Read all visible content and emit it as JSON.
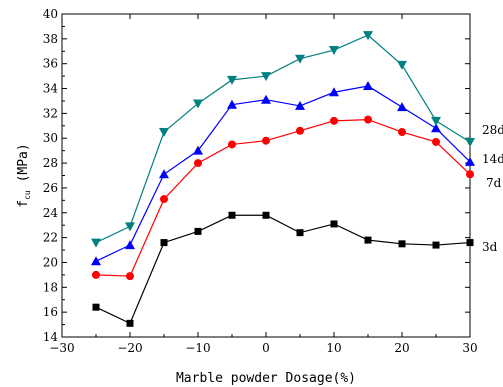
{
  "chart_data": {
    "type": "line",
    "xlabel": "Marble powder Dosage(%)",
    "ylabel": {
      "main": "f",
      "sub": "cu",
      "unit": "(MPa)"
    },
    "xlim": [
      -30,
      30
    ],
    "ylim": [
      14,
      40
    ],
    "xticks": [
      -30,
      -20,
      -10,
      0,
      10,
      20,
      30
    ],
    "yticks": [
      14,
      16,
      18,
      20,
      22,
      24,
      26,
      28,
      30,
      32,
      34,
      36,
      38,
      40
    ],
    "x": [
      -25,
      -20,
      -15,
      -10,
      -5,
      0,
      5,
      10,
      15,
      20,
      25,
      30
    ],
    "grid": false,
    "series": [
      {
        "name": "3d",
        "color": "#000000",
        "marker": "square",
        "values": [
          16.4,
          15.1,
          21.6,
          22.5,
          23.8,
          23.8,
          22.4,
          23.1,
          21.8,
          21.5,
          21.4,
          21.6
        ]
      },
      {
        "name": "7d",
        "color": "#ff0000",
        "marker": "circle",
        "values": [
          19.0,
          18.9,
          25.1,
          28.0,
          29.5,
          29.8,
          30.6,
          31.4,
          31.5,
          30.5,
          29.7,
          27.1
        ]
      },
      {
        "name": "14d",
        "color": "#0000ff",
        "marker": "triangle-up",
        "values": [
          20.1,
          21.4,
          27.1,
          29.0,
          32.7,
          33.1,
          32.6,
          33.7,
          34.2,
          32.5,
          30.8,
          28.1
        ]
      },
      {
        "name": "28d",
        "color": "#008080",
        "marker": "triangle-down",
        "values": [
          21.6,
          22.9,
          30.5,
          32.8,
          34.7,
          35.0,
          36.4,
          37.1,
          38.3,
          35.9,
          31.4,
          29.7
        ]
      }
    ]
  }
}
